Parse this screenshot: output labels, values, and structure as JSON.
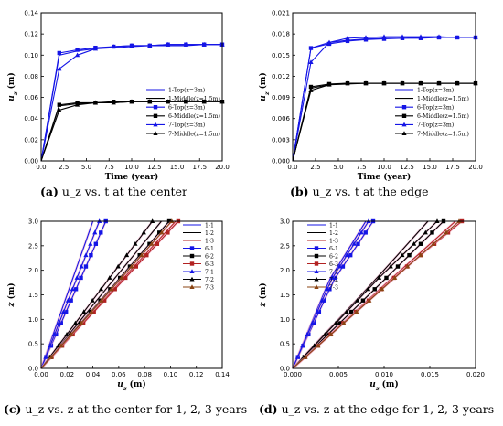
{
  "captions": [
    {
      "letter": "(a)",
      "text": "u_z vs. t at the center"
    },
    {
      "letter": "(b)",
      "text": "u_z vs. t at the edge"
    },
    {
      "letter": "(c)",
      "text": "u_z vs. z at the center for 1, 2, 3 years"
    },
    {
      "letter": "(d)",
      "text": "u_z vs. z at the edge for 1, 2, 3 years"
    }
  ],
  "colors": {
    "blue": "#1515e6",
    "black": "#000000",
    "red": "#b22222",
    "brown": "#8b4513",
    "pink": "#f5a6c8"
  },
  "chart_data": [
    {
      "type": "line",
      "xlabel": "Time (year)",
      "ylabel": "u_z (m)",
      "xlim": [
        0,
        20
      ],
      "ylim": [
        0,
        0.14
      ],
      "xticks": [
        "0.0",
        "2.5",
        "5.0",
        "7.5",
        "10.0",
        "12.5",
        "15.0",
        "17.5",
        "20.0"
      ],
      "yticks": [
        "0.00",
        "0.02",
        "0.04",
        "0.06",
        "0.08",
        "0.10",
        "0.12",
        "0.14"
      ],
      "legend_position": "lower-right",
      "series": [
        {
          "name": "1-Top(z=3m)",
          "color": "#1515e6",
          "marker": "none",
          "x": [
            0,
            2,
            4,
            6,
            8,
            10,
            12,
            14,
            16,
            18,
            20
          ],
          "y": [
            0,
            0.1,
            0.104,
            0.106,
            0.107,
            0.108,
            0.109,
            0.109,
            0.109,
            0.11,
            0.11
          ]
        },
        {
          "name": "1-Middle(z=1.5m)",
          "color": "#000000",
          "marker": "none",
          "x": [
            0,
            2,
            4,
            6,
            8,
            10,
            12,
            14,
            16,
            18,
            20
          ],
          "y": [
            0,
            0.052,
            0.054,
            0.055,
            0.055,
            0.056,
            0.056,
            0.056,
            0.056,
            0.056,
            0.056
          ]
        },
        {
          "name": "6-Top(z=3m)",
          "color": "#1515e6",
          "marker": "square",
          "x": [
            0,
            2,
            4,
            6,
            8,
            10,
            12,
            14,
            16,
            18,
            20
          ],
          "y": [
            0,
            0.102,
            0.105,
            0.107,
            0.108,
            0.109,
            0.109,
            0.11,
            0.11,
            0.11,
            0.11
          ]
        },
        {
          "name": "6-Middle(z=1.5m)",
          "color": "#000000",
          "marker": "square",
          "x": [
            0,
            2,
            4,
            6,
            8,
            10,
            12,
            14,
            16,
            18,
            20
          ],
          "y": [
            0,
            0.053,
            0.055,
            0.055,
            0.056,
            0.056,
            0.056,
            0.056,
            0.056,
            0.056,
            0.056
          ]
        },
        {
          "name": "7-Top(z=3m)",
          "color": "#1515e6",
          "marker": "triangle",
          "x": [
            0,
            2,
            4,
            6,
            8,
            10,
            12,
            14,
            16,
            18,
            20
          ],
          "y": [
            0,
            0.087,
            0.1,
            0.106,
            0.108,
            0.109,
            0.109,
            0.11,
            0.11,
            0.11,
            0.11
          ]
        },
        {
          "name": "7-Middle(z=1.5m)",
          "color": "#000000",
          "marker": "triangle",
          "x": [
            0,
            2,
            4,
            6,
            8,
            10,
            12,
            14,
            16,
            18,
            20
          ],
          "y": [
            0,
            0.048,
            0.053,
            0.055,
            0.055,
            0.056,
            0.056,
            0.056,
            0.056,
            0.056,
            0.056
          ]
        }
      ]
    },
    {
      "type": "line",
      "xlabel": "Time (year)",
      "ylabel": "u_z (m)",
      "xlim": [
        0,
        20
      ],
      "ylim": [
        0,
        0.021
      ],
      "xticks": [
        "0.0",
        "2.5",
        "5.0",
        "7.5",
        "10.0",
        "12.5",
        "15.0",
        "17.5",
        "20.0"
      ],
      "yticks": [
        "0.000",
        "0.003",
        "0.006",
        "0.009",
        "0.012",
        "0.015",
        "0.018",
        "0.021"
      ],
      "legend_position": "lower-right",
      "series": [
        {
          "name": "1-Top(z=3m)",
          "color": "#1515e6",
          "marker": "none",
          "x": [
            0,
            2,
            4,
            6,
            8,
            10,
            12,
            14,
            16,
            18,
            20
          ],
          "y": [
            0,
            0.016,
            0.0168,
            0.0171,
            0.0173,
            0.0174,
            0.0174,
            0.0175,
            0.0175,
            0.0175,
            0.0175
          ]
        },
        {
          "name": "1-Middle(z=1.5m)",
          "color": "#000000",
          "marker": "none",
          "x": [
            0,
            2,
            4,
            6,
            8,
            10,
            12,
            14,
            16,
            18,
            20
          ],
          "y": [
            0,
            0.0103,
            0.0108,
            0.0109,
            0.011,
            0.011,
            0.011,
            0.011,
            0.011,
            0.011,
            0.011
          ]
        },
        {
          "name": "6-Top(z=3m)",
          "color": "#1515e6",
          "marker": "square",
          "x": [
            0,
            2,
            4,
            6,
            8,
            10,
            12,
            14,
            16,
            18,
            20
          ],
          "y": [
            0,
            0.016,
            0.0166,
            0.017,
            0.0172,
            0.0173,
            0.0174,
            0.0174,
            0.0175,
            0.0175,
            0.0175
          ]
        },
        {
          "name": "6-Middle(z=1.5m)",
          "color": "#000000",
          "marker": "square",
          "x": [
            0,
            2,
            4,
            6,
            8,
            10,
            12,
            14,
            16,
            18,
            20
          ],
          "y": [
            0,
            0.0105,
            0.0109,
            0.011,
            0.011,
            0.011,
            0.011,
            0.011,
            0.011,
            0.011,
            0.011
          ]
        },
        {
          "name": "7-Top(z=3m)",
          "color": "#1515e6",
          "marker": "triangle",
          "x": [
            0,
            2,
            4,
            6,
            8,
            10,
            12,
            14,
            16,
            18,
            20
          ],
          "y": [
            0,
            0.014,
            0.0168,
            0.0174,
            0.0175,
            0.0176,
            0.0176,
            0.0176,
            0.0176,
            0.0175,
            0.0175
          ]
        },
        {
          "name": "7-Middle(z=1.5m)",
          "color": "#000000",
          "marker": "triangle",
          "x": [
            0,
            2,
            4,
            6,
            8,
            10,
            12,
            14,
            16,
            18,
            20
          ],
          "y": [
            0,
            0.01,
            0.0108,
            0.011,
            0.011,
            0.011,
            0.011,
            0.011,
            0.011,
            0.011,
            0.011
          ]
        }
      ]
    },
    {
      "type": "line",
      "xlabel": "u_z (m)",
      "ylabel": "z (m)",
      "xlim": [
        0,
        0.14
      ],
      "ylim": [
        0,
        3.0
      ],
      "xticks": [
        "0.00",
        "0.02",
        "0.04",
        "0.06",
        "0.08",
        "0.10",
        "0.12",
        "0.14"
      ],
      "yticks": [
        "0.0",
        "0.5",
        "1.0",
        "1.5",
        "2.0",
        "2.5",
        "3.0"
      ],
      "legend_position": "top-right",
      "series": [
        {
          "name": "1-1",
          "color": "#1515e6",
          "marker": "none",
          "x": [
            0,
            0.04
          ],
          "y": [
            0,
            3.0
          ]
        },
        {
          "name": "1-2",
          "color": "#000000",
          "marker": "none",
          "x": [
            0,
            0.093
          ],
          "y": [
            0,
            3.0
          ]
        },
        {
          "name": "1-3",
          "color": "#b22222",
          "marker": "none",
          "x": [
            0,
            0.104
          ],
          "y": [
            0,
            3.0
          ]
        },
        {
          "name": "6-1",
          "color": "#1515e6",
          "marker": "square",
          "x": [
            0,
            0.05
          ],
          "y": [
            0,
            3.0
          ]
        },
        {
          "name": "6-2",
          "color": "#000000",
          "marker": "square",
          "x": [
            0,
            0.099
          ],
          "y": [
            0,
            3.0
          ]
        },
        {
          "name": "6-3",
          "color": "#b22222",
          "marker": "square",
          "x": [
            0,
            0.106
          ],
          "y": [
            0,
            3.0
          ]
        },
        {
          "name": "7-1",
          "color": "#1515e6",
          "marker": "triangle",
          "x": [
            0,
            0.045
          ],
          "y": [
            0,
            3.0
          ]
        },
        {
          "name": "7-2",
          "color": "#000000",
          "marker": "triangle",
          "x": [
            0,
            0.086
          ],
          "y": [
            0,
            3.0
          ]
        },
        {
          "name": "7-3",
          "color": "#8b4513",
          "marker": "triangle",
          "x": [
            0,
            0.101
          ],
          "y": [
            0,
            3.0
          ]
        }
      ]
    },
    {
      "type": "line",
      "xlabel": "u_z (m)",
      "ylabel": "z (m)",
      "xlim": [
        0,
        0.02
      ],
      "ylim": [
        0,
        3.0
      ],
      "xticks": [
        "0.000",
        "0.005",
        "0.010",
        "0.015",
        "0.020"
      ],
      "yticks": [
        "0.0",
        "0.5",
        "1.0",
        "1.5",
        "2.0",
        "2.5",
        "3.0"
      ],
      "legend_position": "top-left",
      "series": [
        {
          "name": "1-1",
          "color": "#1515e6",
          "marker": "none",
          "x": [
            0,
            0.004,
            0.008
          ],
          "y": [
            0,
            1.8,
            3.0
          ]
        },
        {
          "name": "1-2",
          "color": "#000000",
          "marker": "none",
          "x": [
            0,
            0.009,
            0.0148
          ],
          "y": [
            0,
            1.8,
            3.0
          ]
        },
        {
          "name": "1-3",
          "color": "#b22222",
          "marker": "none",
          "x": [
            0,
            0.0118,
            0.0178
          ],
          "y": [
            0,
            2.0,
            3.0
          ]
        },
        {
          "name": "6-1",
          "color": "#1515e6",
          "marker": "square",
          "x": [
            0,
            0.0045,
            0.0088
          ],
          "y": [
            0,
            1.8,
            3.0
          ]
        },
        {
          "name": "6-2",
          "color": "#000000",
          "marker": "square",
          "x": [
            0,
            0.01,
            0.0165
          ],
          "y": [
            0,
            1.8,
            3.0
          ]
        },
        {
          "name": "6-3",
          "color": "#b22222",
          "marker": "square",
          "x": [
            0,
            0.012,
            0.0185
          ],
          "y": [
            0,
            2.0,
            3.0
          ]
        },
        {
          "name": "7-1",
          "color": "#1515e6",
          "marker": "triangle",
          "x": [
            0,
            0.0042,
            0.0083
          ],
          "y": [
            0,
            1.8,
            3.0
          ]
        },
        {
          "name": "7-2",
          "color": "#000000",
          "marker": "triangle",
          "x": [
            0,
            0.0092,
            0.0158
          ],
          "y": [
            0,
            1.8,
            3.0
          ]
        },
        {
          "name": "7-3",
          "color": "#8b4513",
          "marker": "triangle",
          "x": [
            0,
            0.0121,
            0.0182
          ],
          "y": [
            0,
            2.0,
            3.0
          ]
        }
      ]
    }
  ]
}
